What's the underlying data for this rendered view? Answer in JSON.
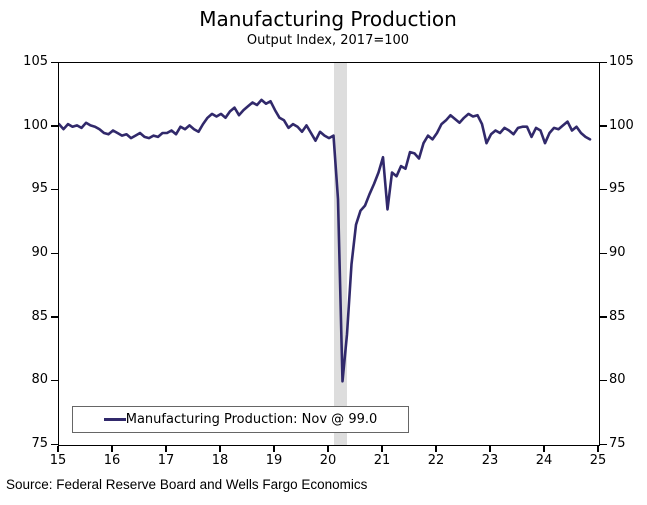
{
  "chart_data": {
    "type": "line",
    "title": "Manufacturing Production",
    "subtitle": "Output Index, 2017=100",
    "xlabel": "",
    "ylabel": "",
    "xlim": [
      2015,
      2025
    ],
    "ylim": [
      75,
      105
    ],
    "grid": false,
    "x_axis": {
      "ticks": [
        15,
        16,
        17,
        18,
        19,
        20,
        21,
        22,
        23,
        24,
        25
      ]
    },
    "y_axis": {
      "ticks": [
        105,
        100,
        95,
        90,
        85,
        80,
        75
      ],
      "shown_on": "both sides"
    },
    "recession_band": {
      "from": 2020.083,
      "to": 2020.333,
      "color": "#dddddd"
    },
    "series": [
      {
        "name": "Manufacturing Production",
        "color": "#31296B",
        "frequency": "monthly",
        "start": "2015-01",
        "end": "2024-11",
        "latest_label": "Nov @ 99.0",
        "values": [
          100.2,
          99.8,
          100.2,
          100.0,
          100.1,
          99.9,
          100.3,
          100.1,
          100.0,
          99.8,
          99.5,
          99.4,
          99.7,
          99.5,
          99.3,
          99.4,
          99.1,
          99.3,
          99.5,
          99.2,
          99.1,
          99.3,
          99.2,
          99.5,
          99.5,
          99.7,
          99.4,
          100.0,
          99.8,
          100.1,
          99.8,
          99.6,
          100.2,
          100.7,
          101.0,
          100.8,
          101.0,
          100.7,
          101.2,
          101.5,
          100.9,
          101.3,
          101.6,
          101.9,
          101.7,
          102.1,
          101.8,
          102.0,
          101.3,
          100.7,
          100.5,
          99.9,
          100.2,
          100.0,
          99.6,
          100.1,
          99.5,
          98.9,
          99.6,
          99.3,
          99.1,
          99.3,
          94.3,
          80.0,
          83.7,
          89.2,
          92.3,
          93.4,
          93.8,
          94.7,
          95.5,
          96.4,
          97.6,
          93.5,
          96.4,
          96.1,
          96.9,
          96.7,
          98.0,
          97.9,
          97.5,
          98.7,
          99.3,
          99.0,
          99.5,
          100.2,
          100.5,
          100.9,
          100.6,
          100.3,
          100.7,
          101.0,
          100.8,
          100.9,
          100.2,
          98.7,
          99.4,
          99.7,
          99.5,
          99.9,
          99.7,
          99.4,
          99.9,
          100.0,
          100.0,
          99.2,
          99.9,
          99.7,
          98.7,
          99.5,
          99.9,
          99.8,
          100.1,
          100.4,
          99.7,
          100.0,
          99.5,
          99.2,
          99.0
        ]
      }
    ],
    "legend": {
      "position": "bottom-left inside",
      "label": "Manufacturing Production: Nov @ 99.0"
    },
    "source": "Source: Federal Reserve Board and Wells Fargo Economics"
  }
}
